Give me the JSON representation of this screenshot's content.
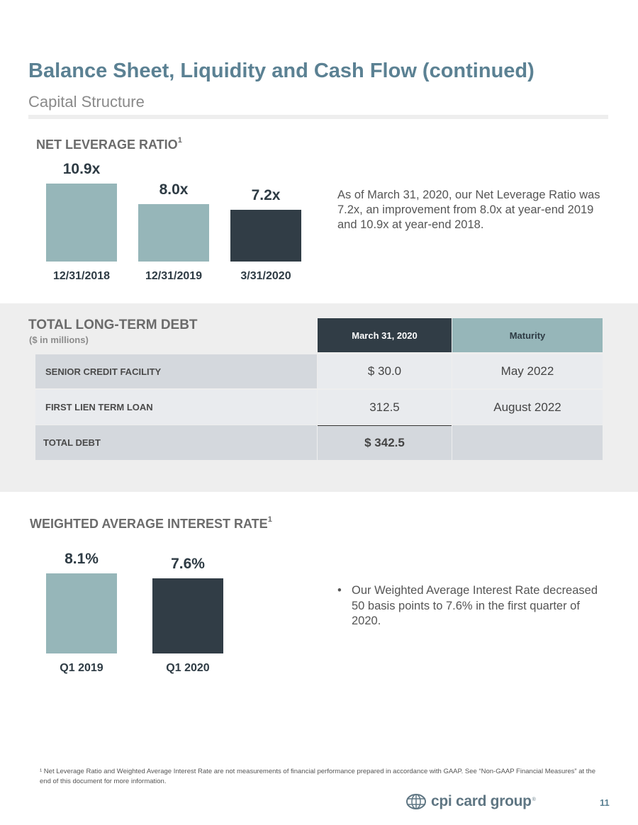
{
  "header": {
    "title": "Balance Sheet, Liquidity and Cash Flow (continued)",
    "subtitle": "Capital Structure"
  },
  "colors": {
    "accent_blue": "#5b8193",
    "bar_light": "#96b6b9",
    "bar_dark": "#313d46",
    "table_alt_gray": "#d4d8dd",
    "table_light_gray": "#e9ebee",
    "band_gray": "#eeeeee"
  },
  "net_leverage": {
    "heading": "NET LEVERAGE RATIO",
    "footnote_mark": "1",
    "description": "As of March 31, 2020, our Net Leverage Ratio was 7.2x, an improvement from 8.0x at year-end 2019 and 10.9x at year-end 2018.",
    "chart_data": {
      "type": "bar",
      "categories": [
        "12/31/2018",
        "12/31/2019",
        "3/31/2020"
      ],
      "values": [
        10.9,
        8.0,
        7.2
      ],
      "labels": [
        "10.9x",
        "8.0x",
        "7.2x"
      ],
      "highlight_index": 2
    }
  },
  "debt": {
    "heading": "TOTAL LONG-TERM DEBT",
    "subheading": "($ in millions)",
    "columns": [
      "March 31, 2020",
      "Maturity"
    ],
    "rows": [
      {
        "label": "SENIOR CREDIT FACILITY",
        "amount": "$ 30.0",
        "maturity": "May 2022"
      },
      {
        "label": "FIRST LIEN TERM LOAN",
        "amount": "312.5",
        "maturity": "August 2022"
      },
      {
        "label": "TOTAL DEBT",
        "amount": "$ 342.5",
        "maturity": ""
      }
    ]
  },
  "interest": {
    "heading": "WEIGHTED AVERAGE INTEREST RATE",
    "footnote_mark": "1",
    "bullet": "Our Weighted Average Interest Rate decreased 50 basis points to 7.6% in the first quarter of 2020.",
    "bullet_symbol": "•",
    "chart_data": {
      "type": "bar",
      "categories": [
        "Q1 2019",
        "Q1 2020"
      ],
      "values": [
        8.1,
        7.6
      ],
      "labels": [
        "8.1%",
        "7.6%"
      ],
      "highlight_index": 1
    }
  },
  "footer": {
    "footnote": "¹ Net Leverage Ratio and Weighted Average Interest Rate are not measurements of financial performance prepared in accordance with GAAP. See “Non-GAAP Financial Measures” at the end of this document for more information.",
    "logo_text": "cpi card group",
    "logo_reg": "®",
    "page_number": "11"
  }
}
